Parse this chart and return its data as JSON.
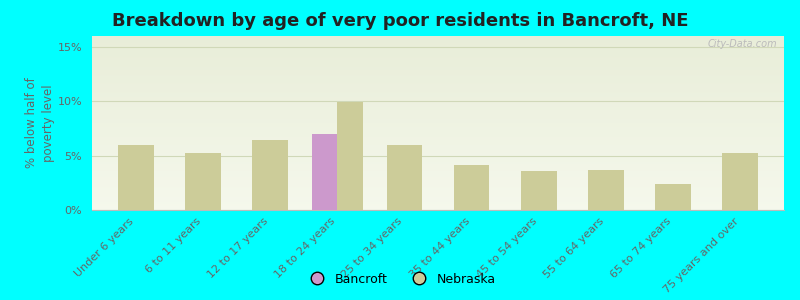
{
  "title": "Breakdown by age of very poor residents in Bancroft, NE",
  "ylabel": "% below half of\npoverty level",
  "categories": [
    "Under 6 years",
    "6 to 11 years",
    "12 to 17 years",
    "18 to 24 years",
    "25 to 34 years",
    "35 to 44 years",
    "45 to 54 years",
    "55 to 64 years",
    "65 to 74 years",
    "75 years and over"
  ],
  "bancroft_values": [
    null,
    null,
    null,
    7.0,
    null,
    null,
    null,
    null,
    null,
    null
  ],
  "nebraska_values": [
    6.0,
    5.2,
    6.4,
    9.9,
    6.0,
    4.1,
    3.6,
    3.7,
    2.4,
    5.2
  ],
  "bancroft_color": "#cc99cc",
  "nebraska_color": "#cccc99",
  "background_color": "#00ffff",
  "plot_bg_top": "#e8edd8",
  "plot_bg_bottom": "#f5f8ec",
  "ylim": [
    0,
    16
  ],
  "yticks": [
    0,
    5,
    10,
    15
  ],
  "ytick_labels": [
    "0%",
    "5%",
    "10%",
    "15%"
  ],
  "title_fontsize": 13,
  "axis_label_fontsize": 8.5,
  "tick_label_fontsize": 8,
  "bar_width": 0.38,
  "watermark": "City-Data.com",
  "grid_color": "#d0d8b8"
}
